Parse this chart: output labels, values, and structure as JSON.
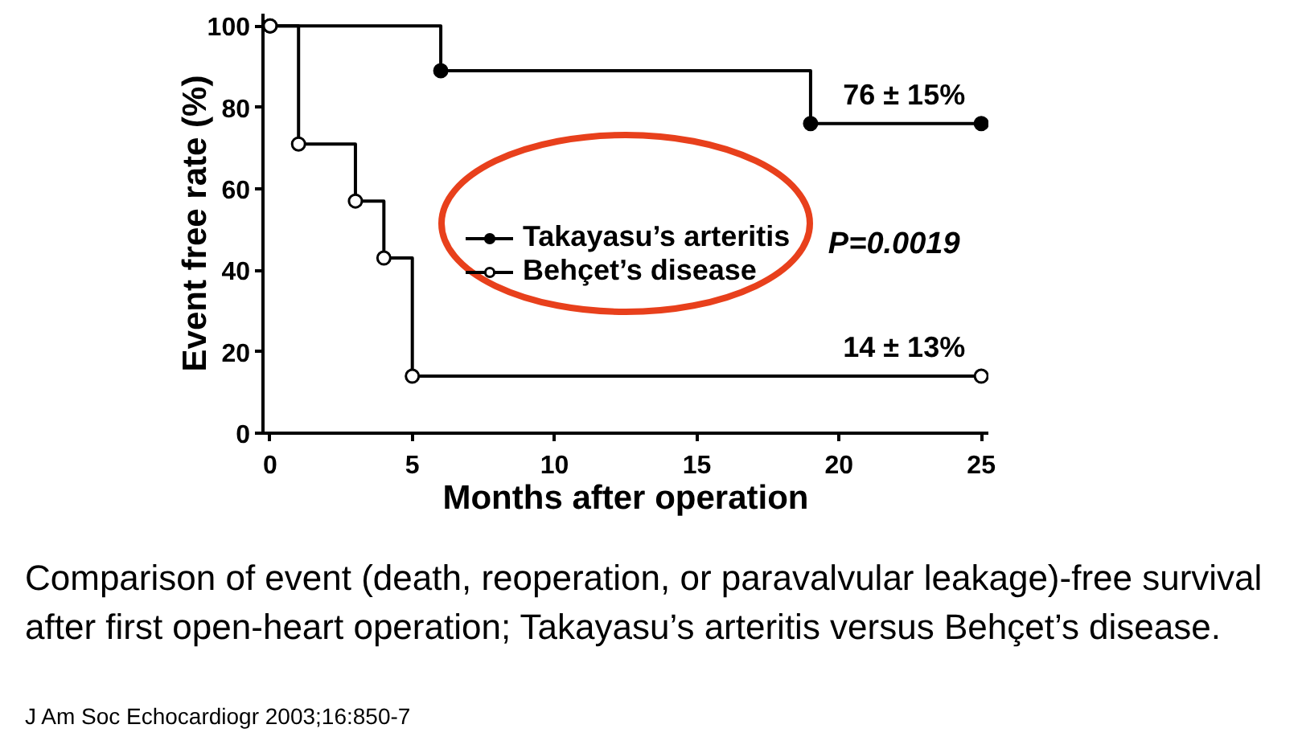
{
  "chart_data": {
    "type": "step",
    "xlabel": "Months after operation",
    "ylabel": "Event free rate (%)",
    "series": [
      {
        "name": "Takayasu’s arteritis",
        "color": "#000000",
        "marker": "circle",
        "x": [
          0,
          6,
          19,
          25
        ],
        "values": [
          100,
          89,
          76,
          76
        ]
      },
      {
        "name": "Behçet’s disease",
        "color": "#000000",
        "marker": "circle_open",
        "x": [
          0,
          1,
          3,
          4,
          5,
          25
        ],
        "values": [
          100,
          71,
          57,
          43,
          14,
          14
        ]
      }
    ],
    "xlim": [
      -0.25,
      25.25
    ],
    "ylim": [
      0,
      103
    ],
    "xticks": [
      0,
      5,
      10,
      15,
      20,
      25
    ],
    "yticks": [
      0,
      20,
      40,
      60,
      80,
      100
    ],
    "legend": "center",
    "annotations": [
      {
        "text": "76 ± 15%",
        "x": 25,
        "y": 76
      },
      {
        "text": "14 ± 13%",
        "x": 25,
        "y": 14
      },
      "P=0.0019",
      "Comparison of event (death, reoperation, or paravalvular leakage)-free survival after first open-heart operation; Takayasu’s arteritis versus Behçet’s disease.",
      "J Am Soc Echocardiogr 2003;16:850-7"
    ]
  }
}
